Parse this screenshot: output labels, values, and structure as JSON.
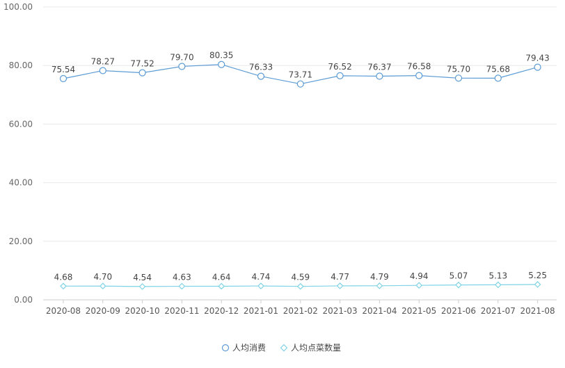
{
  "chart_data": {
    "type": "line",
    "categories": [
      "2020-08",
      "2020-09",
      "2020-10",
      "2020-11",
      "2020-12",
      "2021-01",
      "2021-02",
      "2021-03",
      "2021-04",
      "2021-05",
      "2021-06",
      "2021-07",
      "2021-08"
    ],
    "ylim": [
      0,
      100
    ],
    "yticks": [
      "0.00",
      "20.00",
      "40.00",
      "60.00",
      "80.00",
      "100.00"
    ],
    "grid": true,
    "legend_position": "bottom-center",
    "series": [
      {
        "name": "人均消费",
        "marker": "circle",
        "color": "#5b9bd5",
        "values": [
          75.54,
          78.27,
          77.52,
          79.7,
          80.35,
          76.33,
          73.71,
          76.52,
          76.37,
          76.58,
          75.7,
          75.68,
          79.43
        ],
        "labels": [
          "75.54",
          "78.27",
          "77.52",
          "79.70",
          "80.35",
          "76.33",
          "73.71",
          "76.52",
          "76.37",
          "76.58",
          "75.70",
          "75.68",
          "79.43"
        ]
      },
      {
        "name": "人均点菜数量",
        "marker": "diamond",
        "color": "#7fd3e6",
        "values": [
          4.68,
          4.7,
          4.54,
          4.63,
          4.64,
          4.74,
          4.59,
          4.77,
          4.79,
          4.94,
          5.07,
          5.13,
          5.25
        ],
        "labels": [
          "4.68",
          "4.70",
          "4.54",
          "4.63",
          "4.64",
          "4.74",
          "4.59",
          "4.77",
          "4.79",
          "4.94",
          "5.07",
          "5.13",
          "5.25"
        ]
      }
    ]
  }
}
